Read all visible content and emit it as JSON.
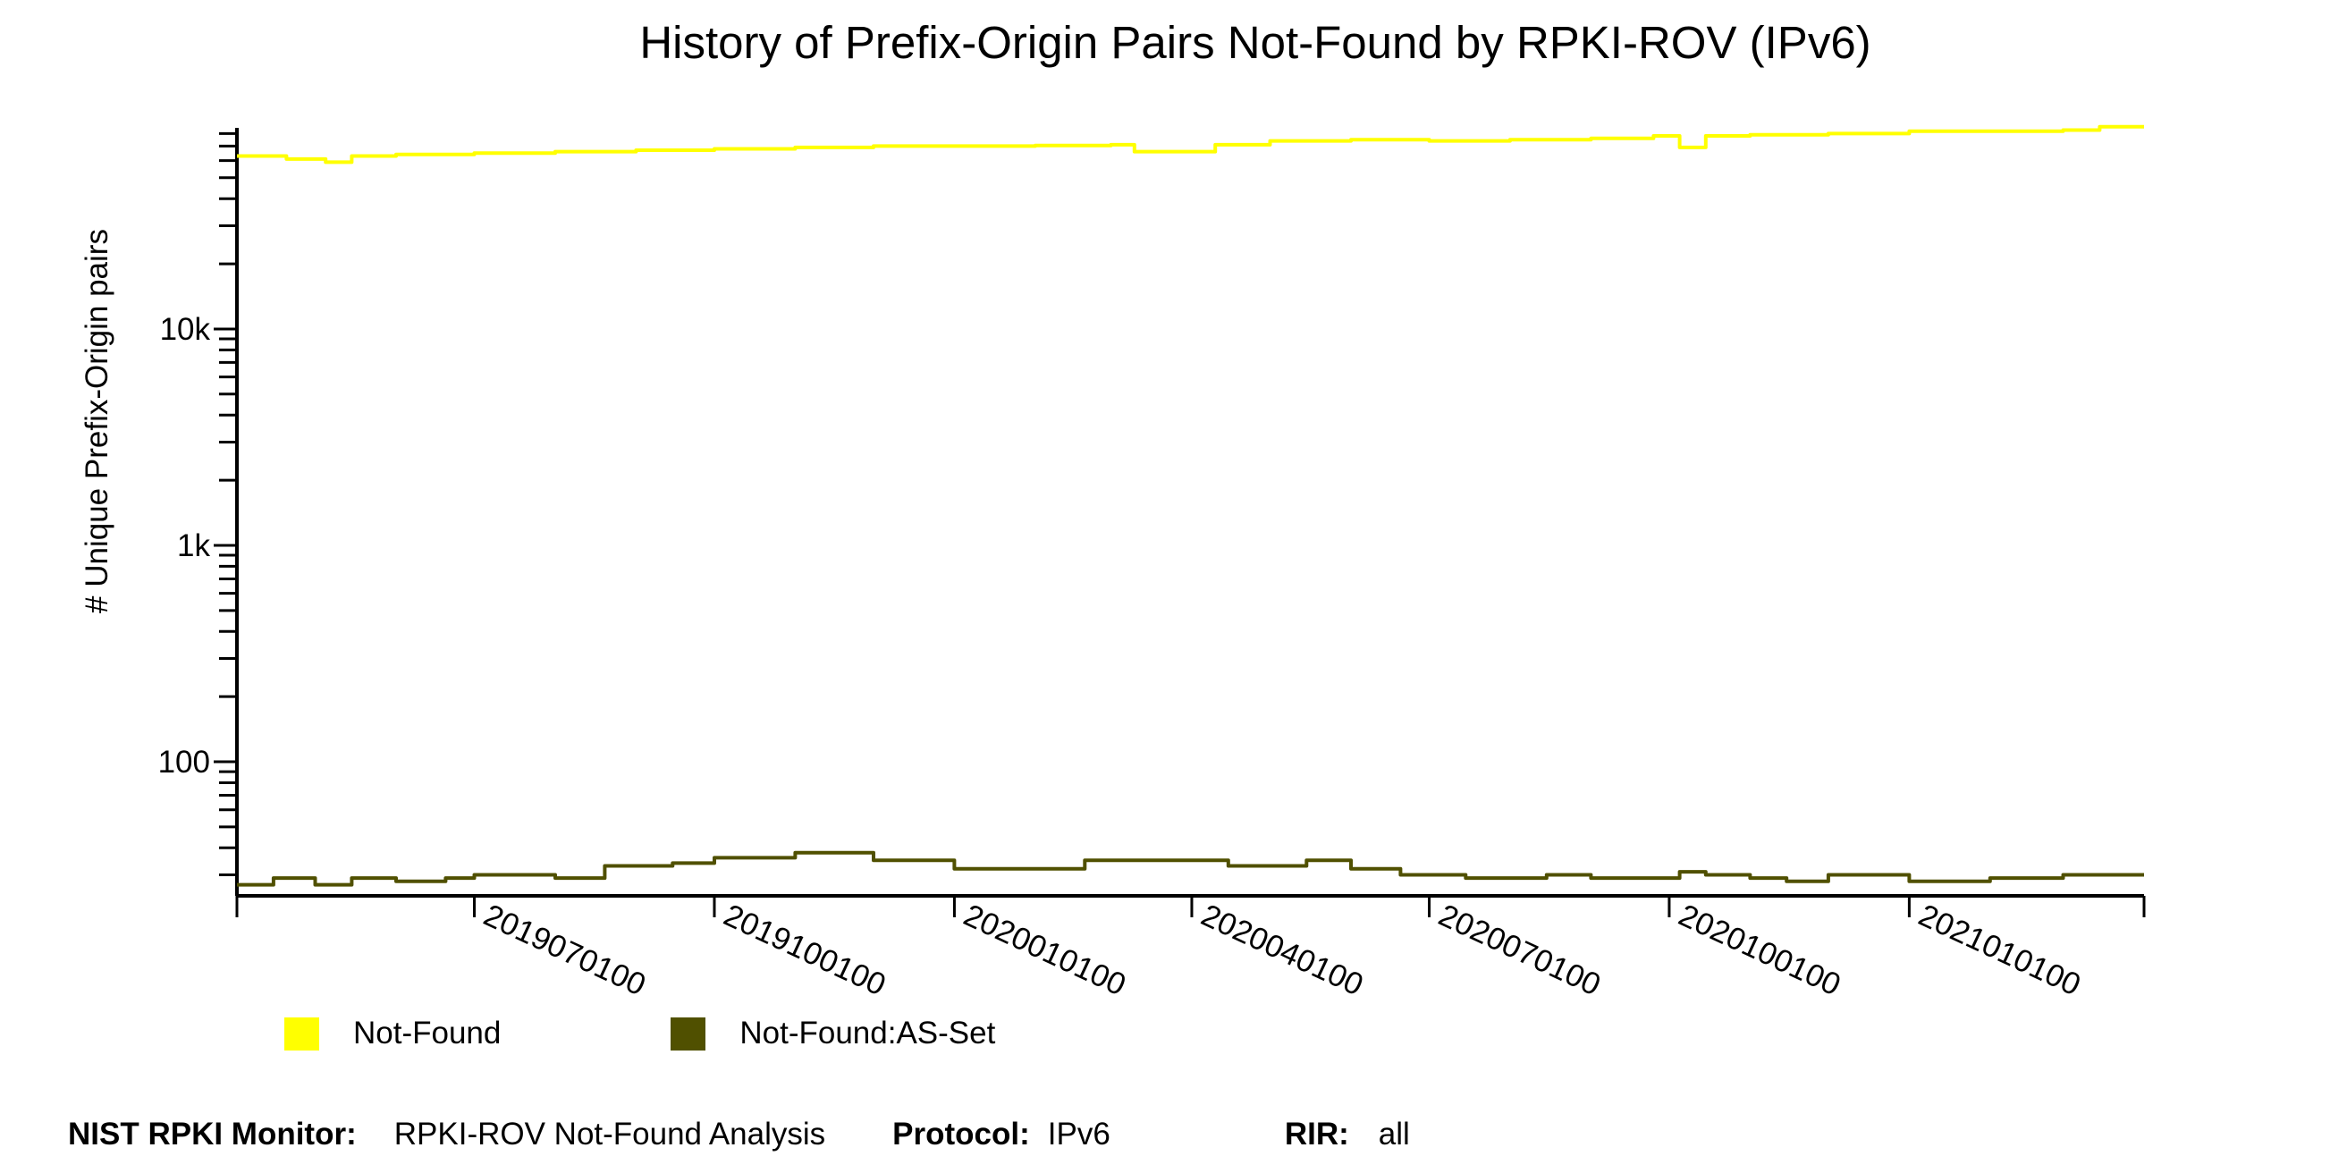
{
  "chart_data": {
    "type": "line",
    "title": "History of Prefix-Origin Pairs Not-Found by RPKI-ROV (IPv6)",
    "xlabel": "",
    "ylabel": "# Unique Prefix-Origin pairs",
    "yscale": "log",
    "ylim": [
      24,
      85000
    ],
    "ytick_labels": [
      "100",
      "1k",
      "10k"
    ],
    "ytick_values": [
      100,
      1000,
      10000
    ],
    "x_range": [
      "2019-04-01",
      "2021-04-01"
    ],
    "xtick_labels": [
      "2019070100",
      "2019100100",
      "2020010100",
      "2020040100",
      "2020070100",
      "2020100100",
      "2021010100"
    ],
    "xtick_dates": [
      "2019-07-01",
      "2019-10-01",
      "2020-01-01",
      "2020-04-01",
      "2020-07-01",
      "2020-10-01",
      "2021-01-01"
    ],
    "legend_placement": "bottom-left",
    "series": [
      {
        "name": "Not-Found",
        "color": "#ffff00",
        "x": [
          "2019-04-01",
          "2019-04-20",
          "2019-05-05",
          "2019-05-15",
          "2019-06-01",
          "2019-07-01",
          "2019-08-01",
          "2019-09-01",
          "2019-10-01",
          "2019-11-01",
          "2019-12-01",
          "2020-01-01",
          "2020-02-01",
          "2020-03-01",
          "2020-03-10",
          "2020-04-10",
          "2020-05-01",
          "2020-06-01",
          "2020-07-01",
          "2020-08-01",
          "2020-09-01",
          "2020-09-25",
          "2020-10-05",
          "2020-10-15",
          "2020-11-01",
          "2020-12-01",
          "2021-01-01",
          "2021-02-01",
          "2021-03-01",
          "2021-03-15",
          "2021-04-01"
        ],
        "values": [
          63000,
          61000,
          59000,
          63000,
          64000,
          65000,
          66000,
          67000,
          68000,
          69000,
          70000,
          70000,
          70500,
          71000,
          66000,
          71000,
          74000,
          75000,
          74000,
          75000,
          76000,
          78000,
          69000,
          78000,
          79000,
          80000,
          82000,
          82000,
          83000,
          86000,
          86000
        ]
      },
      {
        "name": "Not-Found:AS-Set",
        "color": "#505000",
        "x": [
          "2019-04-01",
          "2019-04-15",
          "2019-05-01",
          "2019-05-15",
          "2019-06-01",
          "2019-06-20",
          "2019-07-01",
          "2019-08-01",
          "2019-08-20",
          "2019-09-15",
          "2019-10-01",
          "2019-11-01",
          "2019-12-01",
          "2020-01-01",
          "2020-02-01",
          "2020-02-20",
          "2020-03-10",
          "2020-04-15",
          "2020-05-15",
          "2020-06-01",
          "2020-06-20",
          "2020-07-15",
          "2020-08-15",
          "2020-09-01",
          "2020-09-25",
          "2020-10-05",
          "2020-10-15",
          "2020-11-01",
          "2020-11-15",
          "2020-12-01",
          "2021-01-01",
          "2021-02-01",
          "2021-03-01",
          "2021-04-01"
        ],
        "values": [
          27,
          29,
          27,
          29,
          28,
          29,
          30,
          29,
          33,
          34,
          36,
          38,
          35,
          32,
          32,
          35,
          35,
          33,
          35,
          32,
          30,
          29,
          30,
          29,
          29,
          31,
          30,
          29,
          28,
          30,
          28,
          29,
          30,
          30
        ]
      }
    ]
  },
  "legend": {
    "items": [
      {
        "label": "Not-Found",
        "color": "#ffff00"
      },
      {
        "label": "Not-Found:AS-Set",
        "color": "#505000"
      }
    ]
  },
  "footer": {
    "monitor_key": "NIST RPKI Monitor:",
    "monitor_val": "RPKI-ROV Not-Found Analysis",
    "protocol_key": "Protocol:",
    "protocol_val": "IPv6",
    "rir_key": "RIR:",
    "rir_val": "all"
  }
}
